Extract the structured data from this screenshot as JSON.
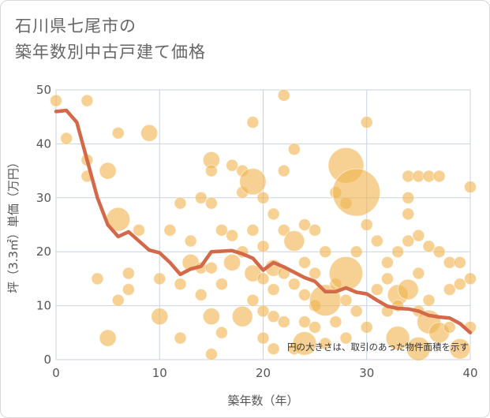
{
  "chart_data": {
    "type": "scatter",
    "title_line1": "石川県七尾市の",
    "title_line2": "築年数別中古戸建て価格",
    "xlabel": "築年数（年）",
    "ylabel": "坪（3.3㎡）単価（万円）",
    "xlim": [
      0,
      40
    ],
    "ylim": [
      0,
      50
    ],
    "x_ticks": [
      "0",
      "10",
      "20",
      "30",
      "40"
    ],
    "y_ticks": [
      "0",
      "10",
      "20",
      "30",
      "40",
      "50"
    ],
    "annotation": "円の大きさは、取引のあった物件面積を示す",
    "colors": {
      "bubble": "#f0b450",
      "line": "#d4694a",
      "grid": "#c8d3e0"
    },
    "series": [
      {
        "name": "average",
        "type": "line",
        "x": [
          0,
          1,
          2,
          3,
          4,
          5,
          6,
          7,
          8,
          9,
          10,
          11,
          12,
          13,
          14,
          15,
          16,
          17,
          18,
          19,
          20,
          21,
          22,
          23,
          24,
          25,
          26,
          27,
          28,
          29,
          30,
          31,
          32,
          33,
          34,
          35,
          36,
          37,
          38,
          39,
          40
        ],
        "y": [
          46,
          46.2,
          44,
          37,
          30,
          25,
          22.8,
          23.7,
          22,
          20.3,
          19.8,
          18,
          15.8,
          16.8,
          17.3,
          20,
          20.1,
          20.2,
          19.6,
          18.8,
          16.6,
          18,
          17.2,
          16.2,
          15.2,
          14.5,
          12.6,
          12.6,
          13.3,
          12.5,
          12.2,
          11,
          9.9,
          9.5,
          9.4,
          9,
          8.2,
          7.9,
          7.7,
          6.7,
          5
        ]
      },
      {
        "name": "transactions",
        "type": "bubble",
        "x": [
          0,
          1,
          3,
          3,
          3,
          4,
          5,
          5,
          6,
          6,
          6,
          7,
          7,
          8,
          9,
          10,
          10,
          11,
          12,
          12,
          12,
          13,
          13,
          14,
          14,
          14,
          15,
          15,
          15,
          15,
          15,
          15,
          16,
          16,
          16,
          17,
          17,
          17,
          18,
          18,
          18,
          18,
          19,
          19,
          19,
          19,
          19,
          20,
          20,
          20,
          20,
          20,
          21,
          21,
          21,
          21,
          21,
          22,
          22,
          22,
          22,
          22,
          23,
          23,
          23,
          23,
          24,
          24,
          24,
          24,
          24,
          25,
          25,
          25,
          25,
          26,
          26,
          26,
          27,
          27,
          27,
          28,
          28,
          28,
          28,
          28,
          29,
          29,
          29,
          30,
          30,
          30,
          31,
          31,
          32,
          32,
          32,
          33,
          33,
          33,
          33,
          34,
          34,
          34,
          34,
          34,
          35,
          35,
          35,
          35,
          35,
          36,
          36,
          36,
          36,
          37,
          37,
          37,
          38,
          38,
          38,
          39,
          39,
          39,
          40,
          40,
          40
        ],
        "y": [
          48,
          41,
          48,
          37,
          34,
          15,
          35,
          4,
          42,
          26,
          11,
          16,
          13,
          24,
          42,
          15,
          8,
          24,
          29,
          14,
          4,
          22,
          18,
          30,
          17,
          12,
          37,
          35,
          29,
          17,
          8,
          1,
          24,
          14,
          5,
          36,
          23,
          18,
          35,
          31,
          20,
          8,
          44,
          33,
          24,
          16,
          11,
          30,
          21,
          15,
          9,
          4,
          27,
          17,
          13,
          8,
          2,
          49,
          35,
          24,
          16,
          7,
          39,
          22,
          14,
          2,
          25,
          18,
          12,
          7,
          3,
          24,
          16,
          10,
          6,
          20,
          11,
          3,
          31,
          14,
          7,
          36,
          29,
          16,
          11,
          4,
          31,
          20,
          9,
          44,
          25,
          6,
          22,
          13,
          18,
          15,
          9,
          20,
          12,
          10,
          4,
          34,
          30,
          27,
          22,
          13,
          34,
          23,
          16,
          9,
          2,
          34,
          21,
          11,
          7,
          34,
          20,
          5,
          18,
          13,
          6,
          18,
          14,
          2,
          32,
          15,
          6
        ],
        "size": [
          1,
          1,
          1,
          1,
          1,
          1,
          2,
          2,
          1,
          4,
          1,
          1,
          1,
          1,
          2,
          1,
          2,
          1,
          1,
          1,
          1,
          1,
          2,
          1,
          1,
          1,
          2,
          1,
          1,
          1,
          2,
          1,
          1,
          1,
          1,
          1,
          1,
          2,
          1,
          1,
          1,
          3,
          1,
          5,
          1,
          2,
          1,
          1,
          1,
          1,
          1,
          1,
          1,
          2,
          1,
          1,
          1,
          1,
          1,
          1,
          1,
          1,
          1,
          3,
          1,
          1,
          1,
          1,
          1,
          1,
          4,
          1,
          1,
          1,
          1,
          1,
          7,
          1,
          1,
          1,
          1,
          9,
          1,
          8,
          1,
          1,
          16,
          1,
          1,
          1,
          1,
          1,
          1,
          1,
          1,
          1,
          1,
          1,
          3,
          1,
          4,
          1,
          1,
          1,
          1,
          3,
          1,
          1,
          1,
          1,
          4,
          1,
          1,
          1,
          4,
          1,
          1,
          3,
          1,
          1,
          1,
          1,
          1,
          3,
          1,
          1,
          1
        ]
      }
    ]
  }
}
